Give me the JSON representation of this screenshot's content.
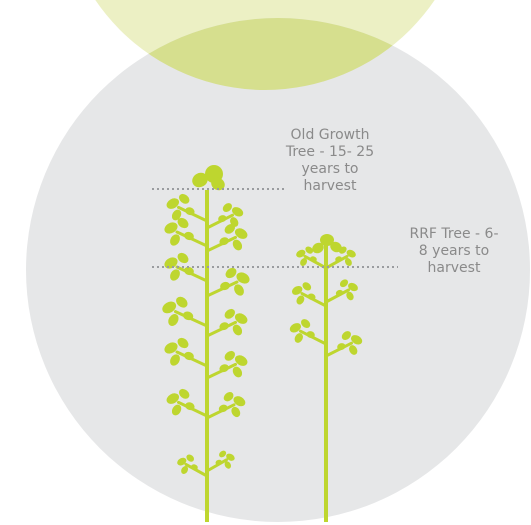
{
  "labels": {
    "old_growth": "Old Growth Tree - 15- 25 years to harvest",
    "rrf": "RRF Tree - 6-8 years to harvest"
  },
  "colors": {
    "top_circle": "#ecf0c4",
    "top_circle_overlap": "#d6df8e",
    "bottom_circle": "#e6e7e8",
    "plant": "#bed62f",
    "dotted_line": "#9a9c9f",
    "label_text": "#8a8a8a"
  }
}
